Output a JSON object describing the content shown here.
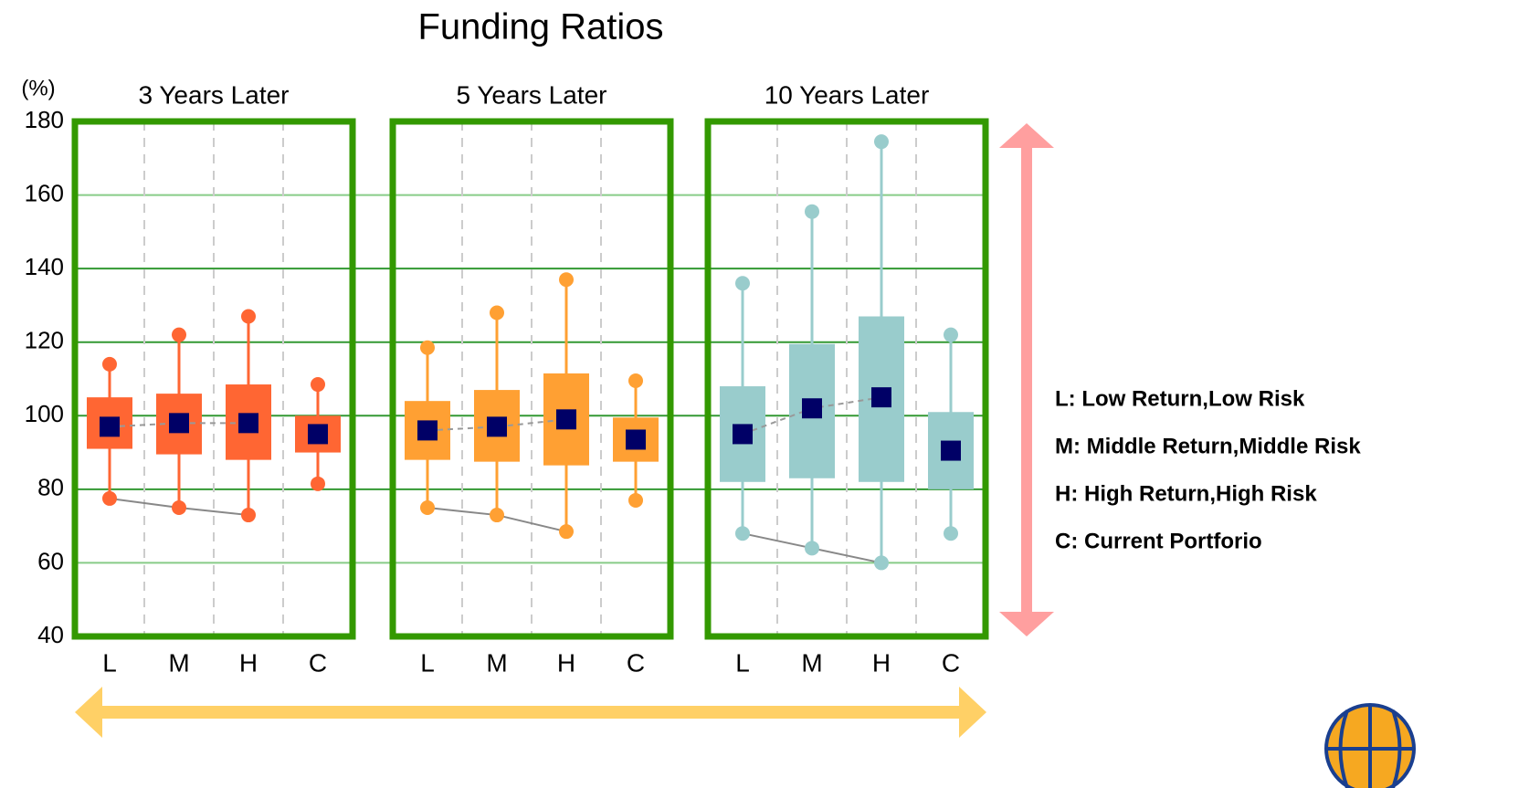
{
  "chart_data": {
    "type": "box",
    "title": "Funding Ratios",
    "y_label": "(%)",
    "ylim": [
      40,
      180
    ],
    "yticks": [
      40,
      60,
      80,
      100,
      120,
      140,
      160,
      180
    ],
    "grid": true,
    "median_color": "#000066",
    "panels": [
      {
        "title": "3 Years Later",
        "color": "#ff6633",
        "categories": [
          "L",
          "M",
          "H",
          "C"
        ],
        "boxes": [
          {
            "low": 77.5,
            "q1": 91,
            "median": 97,
            "q3": 105,
            "high": 114
          },
          {
            "low": 75,
            "q1": 89.5,
            "median": 98,
            "q3": 106,
            "high": 122
          },
          {
            "low": 73,
            "q1": 88,
            "median": 98,
            "q3": 108.5,
            "high": 127
          },
          {
            "low": 81.5,
            "q1": 90,
            "median": 95,
            "q3": 100,
            "high": 108.5
          }
        ]
      },
      {
        "title": "5 Years Later",
        "color": "#ffa033",
        "categories": [
          "L",
          "M",
          "H",
          "C"
        ],
        "boxes": [
          {
            "low": 75,
            "q1": 88,
            "median": 96,
            "q3": 104,
            "high": 118.5
          },
          {
            "low": 73,
            "q1": 87.5,
            "median": 97,
            "q3": 107,
            "high": 128
          },
          {
            "low": 68.5,
            "q1": 86.5,
            "median": 99,
            "q3": 111.5,
            "high": 137
          },
          {
            "low": 77,
            "q1": 87.5,
            "median": 93.5,
            "q3": 99.5,
            "high": 109.5
          }
        ]
      },
      {
        "title": "10 Years Later",
        "color": "#99cccc",
        "categories": [
          "L",
          "M",
          "H",
          "C"
        ],
        "boxes": [
          {
            "low": 68,
            "q1": 82,
            "median": 95,
            "q3": 108,
            "high": 136
          },
          {
            "low": 64,
            "q1": 83,
            "median": 102,
            "q3": 119.5,
            "high": 155.5
          },
          {
            "low": 60,
            "q1": 82,
            "median": 105,
            "q3": 127,
            "high": 174.5
          },
          {
            "low": 68,
            "q1": 80,
            "median": 90.5,
            "q3": 101,
            "high": 122
          }
        ]
      }
    ],
    "notes": [
      "L: Low Return,Low Risk",
      "M: Middle Return,Middle Risk",
      "H: High Return,High Risk",
      "C: Current Portforio"
    ]
  }
}
